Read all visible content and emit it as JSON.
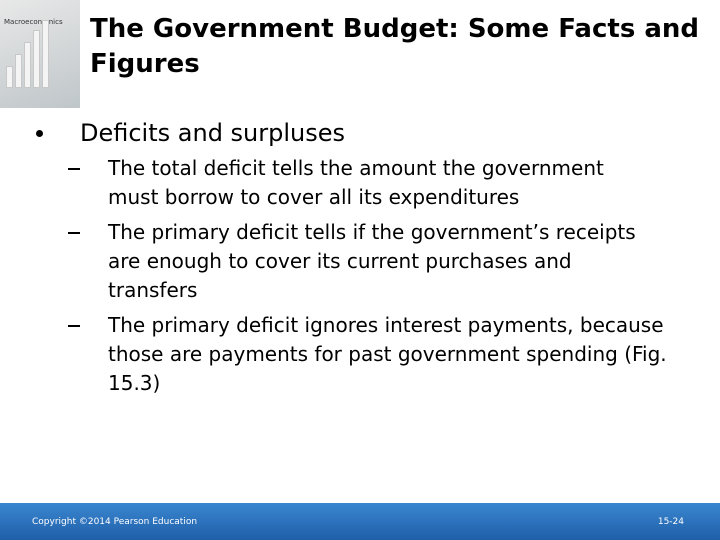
{
  "cover": {
    "title": "Macroeconomics"
  },
  "title": "The Government Budget: Some Facts and Figures",
  "bullets": [
    {
      "text": "Deficits and surpluses",
      "items": [
        "The total deficit tells the amount the government must borrow to cover all its expenditures",
        "The primary deficit tells if the government’s receipts are enough to cover its current purchases and transfers",
        "The primary deficit ignores interest payments, because those are payments for past government spending (Fig. 15.3)"
      ]
    }
  ],
  "footer": {
    "copyright": "Copyright ©2014 Pearson Education",
    "page": "15-24"
  }
}
